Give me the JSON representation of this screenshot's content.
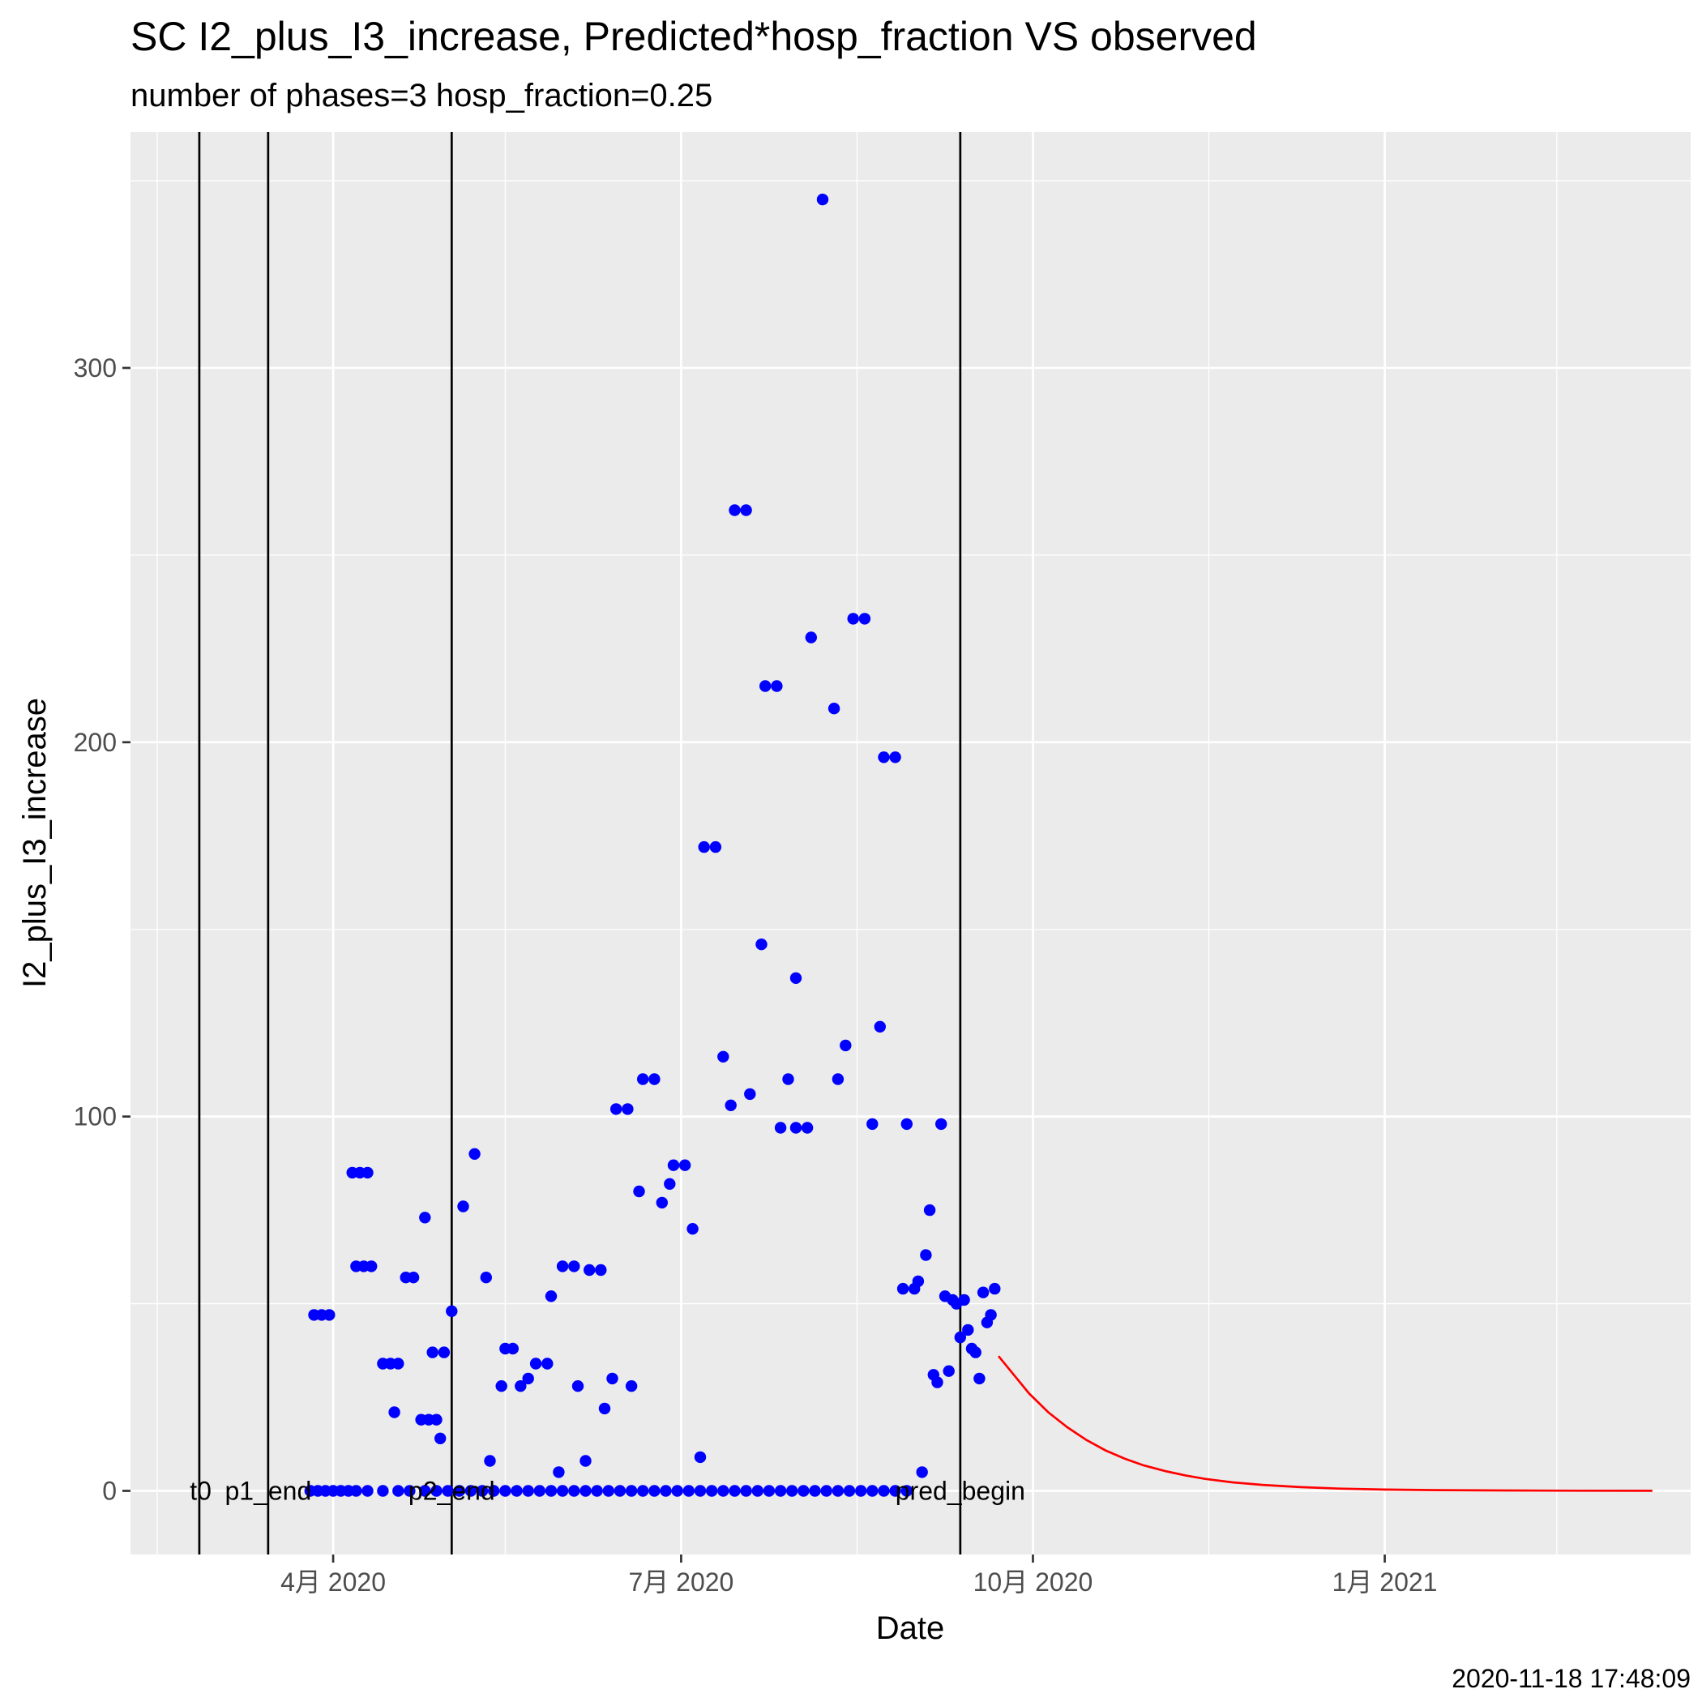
{
  "chart_data": {
    "type": "scatter",
    "title": "SC I2_plus_I3_increase, Predicted*hosp_fraction VS observed",
    "subtitle": "number of phases=3   hosp_fraction=0.25",
    "xlabel": "Date",
    "ylabel": "I2_plus_I3_increase",
    "caption": "2020-11-18 17:48:09",
    "x_range": [
      "2020-02-08",
      "2021-03-22"
    ],
    "ylim": [
      -17,
      363
    ],
    "x_ticks": [
      {
        "date": "2020-04-01",
        "label": "4月 2020"
      },
      {
        "date": "2020-07-01",
        "label": "7月 2020"
      },
      {
        "date": "2020-10-01",
        "label": "10月 2020"
      },
      {
        "date": "2021-01-01",
        "label": "1月 2021"
      }
    ],
    "x_minor_ticks": [
      "2020-02-15",
      "2020-05-16",
      "2020-08-16",
      "2020-11-16",
      "2021-02-15"
    ],
    "y_ticks": [
      0,
      100,
      200,
      300
    ],
    "y_minor_ticks": [
      50,
      150,
      250,
      350
    ],
    "grid": true,
    "vlines": [
      {
        "date": "2020-02-26",
        "label": "t0",
        "label_align": "end"
      },
      {
        "date": "2020-03-15",
        "label": "p1_end",
        "label_align": "middle"
      },
      {
        "date": "2020-05-02",
        "label": "p2_end",
        "label_align": "middle"
      },
      {
        "date": "2020-09-12",
        "label": "pred_begin",
        "label_align": "middle"
      }
    ],
    "series": [
      {
        "kind": "points",
        "color": "#0000ff",
        "points": [
          [
            "2020-03-27",
            47
          ],
          [
            "2020-03-29",
            47
          ],
          [
            "2020-03-31",
            47
          ],
          [
            "2020-04-06",
            85
          ],
          [
            "2020-04-08",
            85
          ],
          [
            "2020-04-10",
            85
          ],
          [
            "2020-04-07",
            60
          ],
          [
            "2020-04-09",
            60
          ],
          [
            "2020-04-11",
            60
          ],
          [
            "2020-04-14",
            34
          ],
          [
            "2020-04-16",
            34
          ],
          [
            "2020-04-18",
            34
          ],
          [
            "2020-04-17",
            21
          ],
          [
            "2020-04-20",
            57
          ],
          [
            "2020-04-22",
            57
          ],
          [
            "2020-04-24",
            19
          ],
          [
            "2020-04-26",
            19
          ],
          [
            "2020-04-28",
            19
          ],
          [
            "2020-04-25",
            73
          ],
          [
            "2020-04-27",
            37
          ],
          [
            "2020-04-29",
            14
          ],
          [
            "2020-04-30",
            37
          ],
          [
            "2020-05-02",
            48
          ],
          [
            "2020-05-05",
            76
          ],
          [
            "2020-05-08",
            90
          ],
          [
            "2020-05-11",
            57
          ],
          [
            "2020-05-12",
            8
          ],
          [
            "2020-05-15",
            28
          ],
          [
            "2020-05-16",
            38
          ],
          [
            "2020-05-18",
            38
          ],
          [
            "2020-05-20",
            28
          ],
          [
            "2020-05-22",
            30
          ],
          [
            "2020-05-24",
            34
          ],
          [
            "2020-05-27",
            34
          ],
          [
            "2020-05-28",
            52
          ],
          [
            "2020-05-30",
            5
          ],
          [
            "2020-05-31",
            60
          ],
          [
            "2020-06-03",
            60
          ],
          [
            "2020-06-04",
            28
          ],
          [
            "2020-06-06",
            8
          ],
          [
            "2020-06-07",
            59
          ],
          [
            "2020-06-10",
            59
          ],
          [
            "2020-06-11",
            22
          ],
          [
            "2020-06-13",
            30
          ],
          [
            "2020-06-14",
            102
          ],
          [
            "2020-06-17",
            102
          ],
          [
            "2020-06-18",
            28
          ],
          [
            "2020-06-20",
            80
          ],
          [
            "2020-06-21",
            110
          ],
          [
            "2020-06-24",
            110
          ],
          [
            "2020-06-26",
            77
          ],
          [
            "2020-06-28",
            82
          ],
          [
            "2020-06-29",
            87
          ],
          [
            "2020-07-02",
            87
          ],
          [
            "2020-07-04",
            70
          ],
          [
            "2020-07-06",
            9
          ],
          [
            "2020-07-07",
            172
          ],
          [
            "2020-07-10",
            172
          ],
          [
            "2020-07-12",
            116
          ],
          [
            "2020-07-14",
            103
          ],
          [
            "2020-07-15",
            262
          ],
          [
            "2020-07-18",
            262
          ],
          [
            "2020-07-19",
            106
          ],
          [
            "2020-07-22",
            146
          ],
          [
            "2020-07-23",
            215
          ],
          [
            "2020-07-26",
            215
          ],
          [
            "2020-07-27",
            97
          ],
          [
            "2020-07-29",
            110
          ],
          [
            "2020-07-31",
            137
          ],
          [
            "2020-07-31",
            97
          ],
          [
            "2020-08-03",
            97
          ],
          [
            "2020-08-04",
            228
          ],
          [
            "2020-08-07",
            345
          ],
          [
            "2020-08-10",
            209
          ],
          [
            "2020-08-11",
            110
          ],
          [
            "2020-08-13",
            119
          ],
          [
            "2020-08-15",
            233
          ],
          [
            "2020-08-18",
            233
          ],
          [
            "2020-08-20",
            98
          ],
          [
            "2020-08-22",
            124
          ],
          [
            "2020-08-23",
            196
          ],
          [
            "2020-08-26",
            196
          ],
          [
            "2020-08-28",
            54
          ],
          [
            "2020-08-29",
            98
          ],
          [
            "2020-08-31",
            54
          ],
          [
            "2020-09-01",
            56
          ],
          [
            "2020-09-02",
            5
          ],
          [
            "2020-09-03",
            63
          ],
          [
            "2020-09-04",
            75
          ],
          [
            "2020-09-05",
            31
          ],
          [
            "2020-09-06",
            29
          ],
          [
            "2020-09-07",
            98
          ],
          [
            "2020-09-08",
            52
          ],
          [
            "2020-09-09",
            32
          ],
          [
            "2020-09-10",
            51
          ],
          [
            "2020-09-11",
            50
          ],
          [
            "2020-09-12",
            41
          ],
          [
            "2020-09-13",
            51
          ],
          [
            "2020-09-14",
            43
          ],
          [
            "2020-09-15",
            38
          ],
          [
            "2020-09-16",
            37
          ],
          [
            "2020-09-17",
            30
          ],
          [
            "2020-09-18",
            53
          ],
          [
            "2020-09-19",
            45
          ],
          [
            "2020-09-20",
            47
          ],
          [
            "2020-09-21",
            54
          ],
          [
            "2020-03-26",
            0
          ],
          [
            "2020-03-28",
            0
          ],
          [
            "2020-03-30",
            0
          ],
          [
            "2020-04-01",
            0
          ],
          [
            "2020-04-03",
            0
          ],
          [
            "2020-04-05",
            0
          ],
          [
            "2020-04-07",
            0
          ],
          [
            "2020-04-10",
            0
          ],
          [
            "2020-04-14",
            0
          ],
          [
            "2020-04-18",
            0
          ],
          [
            "2020-04-21",
            0
          ],
          [
            "2020-04-25",
            0
          ],
          [
            "2020-04-28",
            0
          ],
          [
            "2020-05-01",
            0
          ],
          [
            "2020-05-04",
            0
          ],
          [
            "2020-05-07",
            0
          ],
          [
            "2020-05-10",
            0
          ],
          [
            "2020-05-13",
            0
          ],
          [
            "2020-05-16",
            0
          ],
          [
            "2020-05-19",
            0
          ],
          [
            "2020-05-22",
            0
          ],
          [
            "2020-05-25",
            0
          ],
          [
            "2020-05-28",
            0
          ],
          [
            "2020-05-31",
            0
          ],
          [
            "2020-06-03",
            0
          ],
          [
            "2020-06-06",
            0
          ],
          [
            "2020-06-09",
            0
          ],
          [
            "2020-06-12",
            0
          ],
          [
            "2020-06-15",
            0
          ],
          [
            "2020-06-18",
            0
          ],
          [
            "2020-06-21",
            0
          ],
          [
            "2020-06-24",
            0
          ],
          [
            "2020-06-27",
            0
          ],
          [
            "2020-06-30",
            0
          ],
          [
            "2020-07-03",
            0
          ],
          [
            "2020-07-06",
            0
          ],
          [
            "2020-07-09",
            0
          ],
          [
            "2020-07-12",
            0
          ],
          [
            "2020-07-15",
            0
          ],
          [
            "2020-07-18",
            0
          ],
          [
            "2020-07-21",
            0
          ],
          [
            "2020-07-24",
            0
          ],
          [
            "2020-07-27",
            0
          ],
          [
            "2020-07-30",
            0
          ],
          [
            "2020-08-02",
            0
          ],
          [
            "2020-08-05",
            0
          ],
          [
            "2020-08-08",
            0
          ],
          [
            "2020-08-11",
            0
          ],
          [
            "2020-08-14",
            0
          ],
          [
            "2020-08-17",
            0
          ],
          [
            "2020-08-20",
            0
          ],
          [
            "2020-08-23",
            0
          ],
          [
            "2020-08-26",
            0
          ],
          [
            "2020-08-29",
            0
          ]
        ]
      },
      {
        "kind": "line",
        "color": "#ff0000",
        "points": [
          [
            "2020-09-22",
            36
          ],
          [
            "2020-09-26",
            31
          ],
          [
            "2020-09-30",
            26
          ],
          [
            "2020-10-05",
            21
          ],
          [
            "2020-10-10",
            17
          ],
          [
            "2020-10-15",
            13.6
          ],
          [
            "2020-10-20",
            10.8
          ],
          [
            "2020-10-25",
            8.6
          ],
          [
            "2020-10-30",
            6.8
          ],
          [
            "2020-11-05",
            5.2
          ],
          [
            "2020-11-10",
            4.1
          ],
          [
            "2020-11-15",
            3.2
          ],
          [
            "2020-11-22",
            2.3
          ],
          [
            "2020-11-30",
            1.6
          ],
          [
            "2020-12-10",
            1.0
          ],
          [
            "2020-12-20",
            0.6
          ],
          [
            "2021-01-01",
            0.35
          ],
          [
            "2021-01-15",
            0.2
          ],
          [
            "2021-02-01",
            0.1
          ],
          [
            "2021-02-20",
            0.05
          ],
          [
            "2021-03-12",
            0.02
          ]
        ]
      }
    ]
  }
}
